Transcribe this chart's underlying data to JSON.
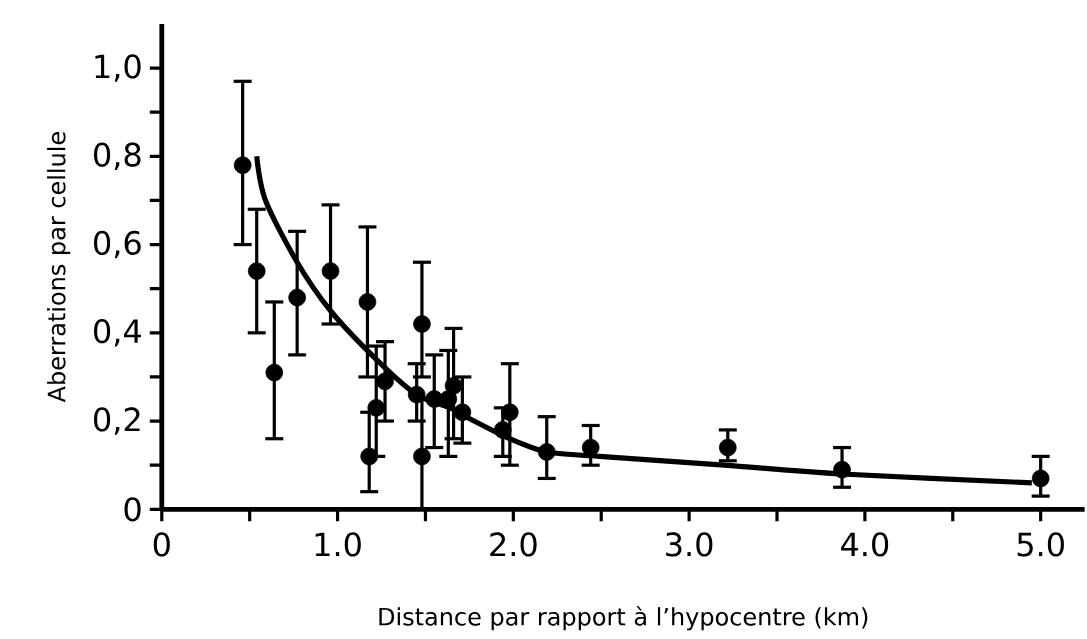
{
  "chart_data": {
    "type": "scatter",
    "xlabel": "Distance par rapport à l’hypocentre (km)",
    "ylabel": "Aberrations par cellule",
    "xlim": [
      0,
      5.25
    ],
    "ylim": [
      0,
      1.1
    ],
    "xticks": [
      0,
      {
        "value": 0.5,
        "label": null
      },
      {
        "value": 1.0,
        "label": "1.0"
      },
      {
        "value": 1.5,
        "label": null
      },
      {
        "value": 2.0,
        "label": "2.0"
      },
      {
        "value": 2.5,
        "label": null
      },
      {
        "value": 3.0,
        "label": "3.0"
      },
      {
        "value": 3.5,
        "label": null
      },
      {
        "value": 4.0,
        "label": "4.0"
      },
      {
        "value": 4.5,
        "label": null
      },
      {
        "value": 5.0,
        "label": "5.0"
      }
    ],
    "yticks": [
      0,
      {
        "value": 0.1,
        "label": null
      },
      {
        "value": 0.2,
        "label": "0,2"
      },
      {
        "value": 0.3,
        "label": null
      },
      {
        "value": 0.4,
        "label": "0,4"
      },
      {
        "value": 0.5,
        "label": null
      },
      {
        "value": 0.6,
        "label": "0,6"
      },
      {
        "value": 0.7,
        "label": null
      },
      {
        "value": 0.8,
        "label": "0,8"
      },
      {
        "value": 0.9,
        "label": null
      },
      {
        "value": 1.0,
        "label": "1,0"
      }
    ],
    "grid": false,
    "series": [
      {
        "marker": "circle",
        "color": "#000000",
        "x": [
          0.46,
          0.54,
          0.64,
          0.77,
          0.96,
          1.17,
          1.18,
          1.22,
          1.27,
          1.45,
          1.48,
          1.48,
          1.55,
          1.63,
          1.66,
          1.71,
          1.94,
          1.98,
          2.19,
          2.44,
          3.22,
          3.87,
          5.0
        ],
        "values": [
          0.78,
          0.54,
          0.31,
          0.48,
          0.54,
          0.47,
          0.12,
          0.23,
          0.29,
          0.26,
          0.42,
          0.12,
          0.25,
          0.25,
          0.28,
          0.22,
          0.18,
          0.22,
          0.13,
          0.14,
          0.14,
          0.09,
          0.07
        ],
        "errors": [
          [
            0.6,
            0.97
          ],
          [
            0.4,
            0.68
          ],
          [
            0.16,
            0.47
          ],
          [
            0.35,
            0.63
          ],
          [
            0.42,
            0.69
          ],
          [
            0.3,
            0.64
          ],
          [
            0.04,
            0.22
          ],
          [
            0.12,
            0.37
          ],
          [
            0.2,
            0.38
          ],
          [
            0.2,
            0.33
          ],
          [
            0.3,
            0.56
          ],
          [
            0.0,
            0.25
          ],
          [
            0.14,
            0.35
          ],
          [
            0.12,
            0.36
          ],
          [
            0.16,
            0.41
          ],
          [
            0.15,
            0.3
          ],
          [
            0.12,
            0.23
          ],
          [
            0.1,
            0.33
          ],
          [
            0.07,
            0.21
          ],
          [
            0.1,
            0.19
          ],
          [
            0.11,
            0.18
          ],
          [
            0.05,
            0.14
          ],
          [
            0.03,
            0.12
          ]
        ]
      },
      {
        "type": "line",
        "marker": "none",
        "line_style": "solid",
        "color": "#000000",
        "x": [
          0.54,
          0.59,
          0.77,
          0.96,
          1.22,
          1.45,
          1.64,
          1.73,
          1.98,
          2.19,
          2.49,
          3.2,
          3.87,
          4.95
        ],
        "values": [
          0.8,
          0.7,
          0.56,
          0.45,
          0.34,
          0.26,
          0.23,
          0.21,
          0.16,
          0.13,
          0.12,
          0.1,
          0.08,
          0.06
        ]
      }
    ]
  }
}
